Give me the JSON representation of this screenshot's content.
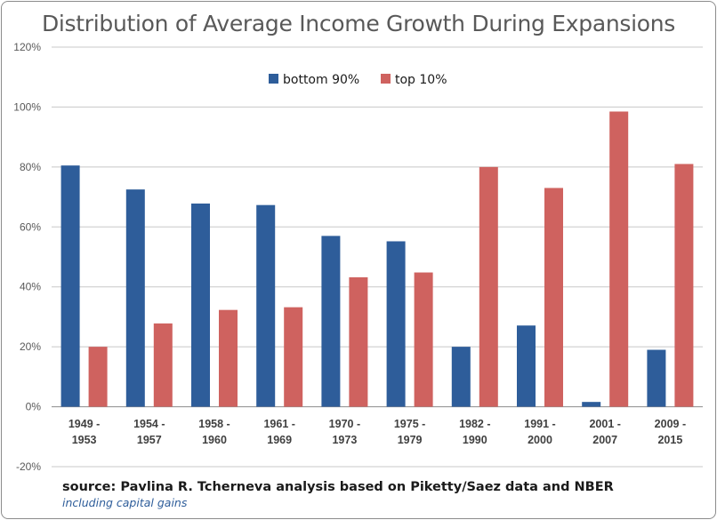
{
  "chart_data": {
    "type": "bar",
    "title": "Distribution of Average Income Growth During Expansions",
    "categories": [
      [
        "1949 -",
        "1953"
      ],
      [
        "1954 -",
        "1957"
      ],
      [
        "1958 -",
        "1960"
      ],
      [
        "1961 -",
        "1969"
      ],
      [
        "1970 -",
        "1973"
      ],
      [
        "1975 -",
        "1979"
      ],
      [
        "1982 -",
        "1990"
      ],
      [
        "1991 -",
        "2000"
      ],
      [
        "2001 -",
        "2007"
      ],
      [
        "2009 -",
        "2015"
      ]
    ],
    "series": [
      {
        "name": "bottom 90%",
        "color": "#2e5d9a",
        "values": [
          80.5,
          72.5,
          67.8,
          67.3,
          57,
          55.2,
          20,
          27.1,
          1.6,
          19
        ]
      },
      {
        "name": "top 10%",
        "color": "#cf625f",
        "values": [
          20,
          27.8,
          32.3,
          33.2,
          43.2,
          44.8,
          80,
          73,
          98.5,
          81
        ]
      }
    ],
    "ylim": [
      -20,
      120
    ],
    "yticks": [
      -20,
      0,
      20,
      40,
      60,
      80,
      100,
      120
    ],
    "ytick_labels": [
      "-20%",
      "0%",
      "20%",
      "40%",
      "60%",
      "80%",
      "100%",
      "120%"
    ],
    "grid": "horizontal",
    "legend_position": "top-center",
    "source": "source: Pavlina R. Tcherneva analysis based on Piketty/Saez data and NBER",
    "note": "including capital gains"
  }
}
